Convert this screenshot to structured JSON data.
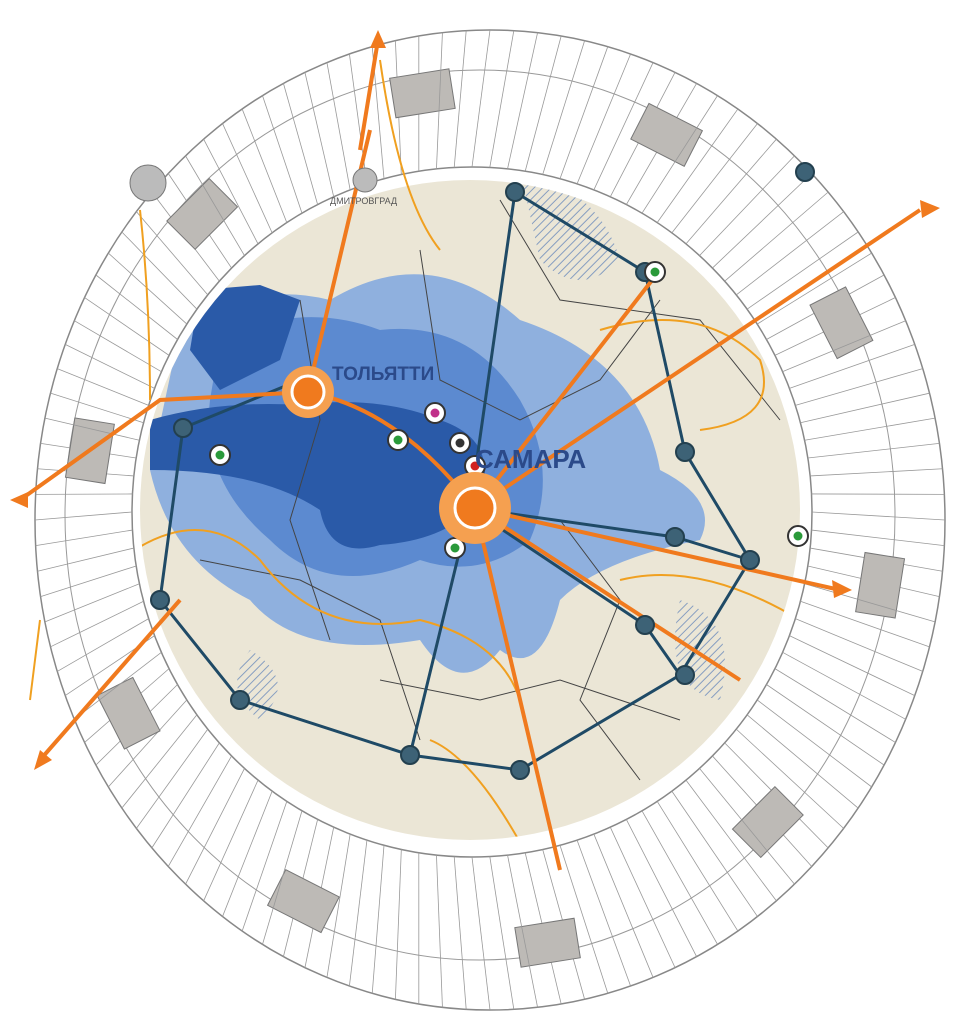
{
  "map": {
    "places": [
      {
        "label": "ТОЛЬЯТТИ"
      },
      {
        "label": "САМАРА"
      },
      {
        "label": "ДМИТРОВГРАД"
      }
    ]
  }
}
